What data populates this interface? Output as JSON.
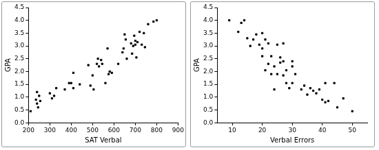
{
  "chart_data": [
    {
      "type": "scatter",
      "x_label": "SAT Verbal",
      "y_label": "GPA",
      "color": "#000000",
      "marker": "square",
      "grid": false,
      "x": [
        210,
        235,
        240,
        240,
        245,
        250,
        255,
        300,
        310,
        320,
        330,
        370,
        390,
        400,
        410,
        410,
        440,
        480,
        490,
        500,
        505,
        520,
        525,
        530,
        540,
        545,
        560,
        570,
        575,
        580,
        590,
        620,
        640,
        645,
        650,
        655,
        660,
        680,
        685,
        690,
        695,
        700,
        700,
        705,
        710,
        720,
        730,
        740,
        745,
        760,
        785,
        800
      ],
      "values": [
        0.45,
        0.9,
        0.75,
        1.2,
        0.6,
        1.05,
        0.85,
        1.15,
        0.95,
        1.05,
        1.35,
        1.3,
        1.55,
        1.55,
        1.35,
        1.95,
        1.5,
        2.25,
        1.45,
        1.85,
        1.3,
        2.3,
        2.5,
        2.2,
        2.45,
        2.3,
        1.55,
        2.9,
        1.9,
        2.0,
        1.95,
        2.3,
        2.75,
        2.9,
        3.45,
        3.25,
        2.5,
        3.1,
        2.7,
        3.0,
        3.4,
        3.2,
        3.05,
        2.55,
        3.15,
        3.55,
        3.05,
        3.5,
        2.95,
        3.85,
        3.95,
        4.0
      ],
      "xlim": [
        200,
        900
      ],
      "xticks": [
        200,
        300,
        400,
        500,
        600,
        700,
        800,
        900
      ],
      "ylim": [
        0,
        4.5
      ],
      "yticks": [
        {
          "value": 0,
          "label": "0.0"
        },
        0.5,
        {
          "value": 1,
          "label": "1.0"
        },
        1.5,
        {
          "value": 2,
          "label": "2.0"
        },
        2.5,
        {
          "value": 3,
          "label": "3.0"
        },
        3.5,
        {
          "value": 4,
          "label": "4.0"
        },
        4.5
      ]
    },
    {
      "type": "scatter",
      "x_label": "Verbal Errors",
      "y_label": "GPA",
      "color": "#000000",
      "marker": "square",
      "grid": false,
      "x": [
        9,
        12,
        13,
        14,
        15,
        16,
        17,
        18,
        19,
        20,
        20,
        20,
        21,
        21,
        22,
        22,
        23,
        23,
        24,
        24,
        25,
        25,
        26,
        26,
        27,
        27,
        27,
        28,
        28,
        29,
        30,
        30,
        30,
        31,
        33,
        34,
        35,
        36,
        37,
        38,
        39,
        40,
        41,
        41,
        42,
        44,
        45,
        47,
        50
      ],
      "values": [
        4.0,
        3.55,
        3.9,
        4.0,
        3.3,
        3.0,
        3.25,
        3.45,
        3.05,
        3.5,
        2.9,
        2.6,
        2.05,
        3.25,
        2.3,
        3.1,
        1.9,
        2.6,
        2.2,
        1.3,
        1.9,
        3.05,
        2.35,
        2.55,
        2.4,
        1.85,
        3.1,
        1.55,
        2.05,
        1.35,
        2.4,
        1.55,
        2.2,
        1.9,
        1.3,
        1.45,
        1.1,
        1.35,
        1.25,
        1.15,
        1.3,
        0.9,
        0.8,
        1.55,
        0.85,
        1.55,
        0.6,
        0.95,
        0.45
      ],
      "xlim": [
        5,
        55
      ],
      "xticks": [
        10,
        20,
        30,
        40,
        50
      ],
      "ylim": [
        0,
        4.5
      ],
      "yticks": [
        {
          "value": 0,
          "label": "0.0"
        },
        0.5,
        {
          "value": 1,
          "label": "1.0"
        },
        1.5,
        {
          "value": 2,
          "label": "2.0"
        },
        2.5,
        {
          "value": 3,
          "label": "3.0"
        },
        3.5,
        {
          "value": 4,
          "label": "4.0"
        },
        4.5
      ]
    }
  ]
}
